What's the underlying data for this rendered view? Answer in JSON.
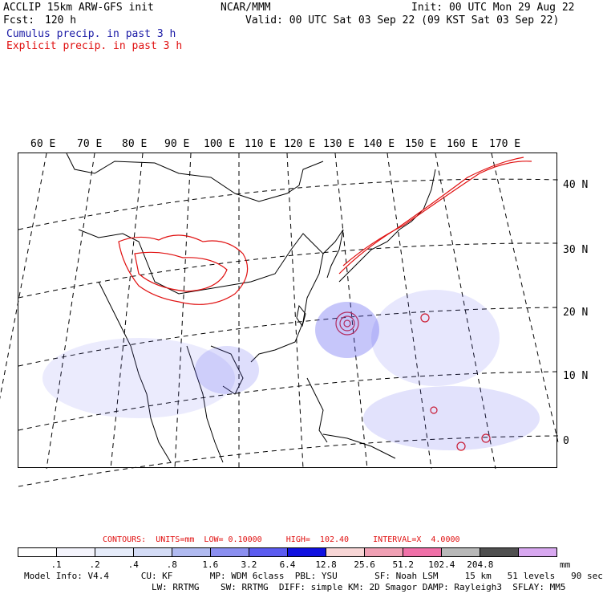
{
  "header": {
    "model": "ACCLIP 15km ARW-GFS init",
    "center": "NCAR/MMM",
    "init": "Init: 00 UTC Mon 29 Aug 22",
    "fcst_label": "Fcst:",
    "fcst_value": "120 h",
    "valid": "Valid: 00 UTC Sat 03 Sep 22 (09 KST Sat 03 Sep 22)",
    "cumulus_label": "Cumulus precip. in past 3 h",
    "explicit_label": "Explicit precip. in past 3 h"
  },
  "colors": {
    "cumulus": "#1a1aa6",
    "explicit": "#e01010",
    "coastline": "#000000",
    "gridline": "#000000"
  },
  "map": {
    "lon_labels": [
      "60 E",
      "70 E",
      "80 E",
      "90 E",
      "100 E",
      "110 E",
      "120 E",
      "130 E",
      "140 E",
      "150 E",
      "160 E",
      "170 E"
    ],
    "lat_labels": [
      "40 N",
      "30 N",
      "20 N",
      "10 N",
      "0"
    ],
    "lon_ticks": [
      60,
      70,
      80,
      90,
      100,
      110,
      120,
      130,
      140,
      150,
      160,
      170
    ],
    "lat_ticks": [
      40,
      30,
      20,
      10,
      0
    ]
  },
  "legend": {
    "contours_text": "CONTOURS:  UNITS=mm  LOW= 0.10000     HIGH=  102.40     INTERVAL=X  4.0000",
    "tick_labels": [
      ".1",
      ".2",
      ".4",
      ".8",
      "1.6",
      "3.2",
      "6.4",
      "12.8",
      "25.6",
      "51.2",
      "102.4",
      "204.8"
    ],
    "units": "mm",
    "fill_colors": [
      "#ffffff",
      "#f4f4fc",
      "#e6ecfa",
      "#d4dcf6",
      "#b0baf0",
      "#8b8ff0",
      "#5c5cf0",
      "#1010e0",
      "#f8d6d6",
      "#f0a0b4",
      "#f070a8",
      "#b8b8b8",
      "#505050",
      "#d8a8f0"
    ]
  },
  "info": {
    "line1": "Model Info: V4.4      CU: KF       MP: WDM 6class  PBL: YSU       SF: Noah LSM     15 km   51 levels   90 sec",
    "line2": "                        LW: RRTMG    SW: RRTMG  DIFF: simple KM: 2D Smagor DAMP: Rayleigh3  SFLAY: MM5"
  }
}
